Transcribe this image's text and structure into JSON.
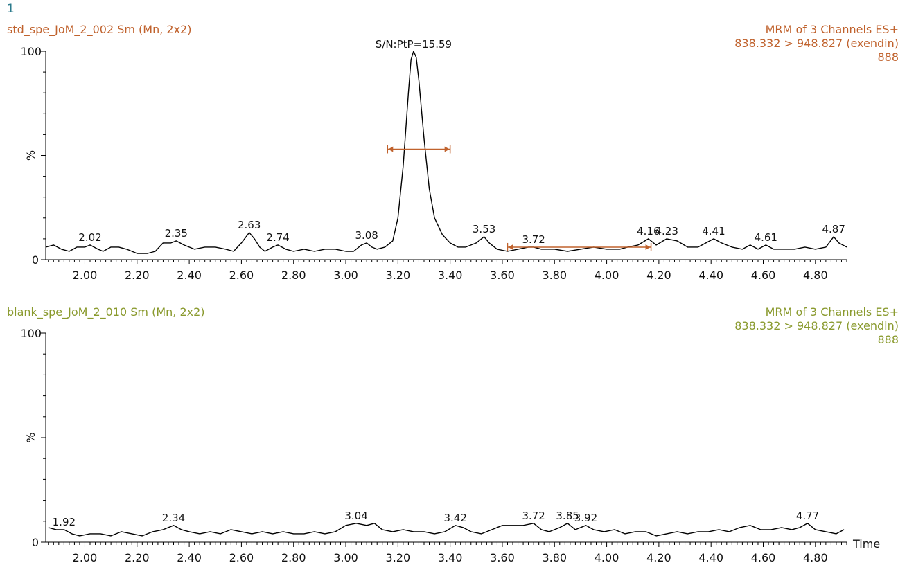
{
  "page_number": "1",
  "chart_data": [
    {
      "type": "line",
      "title": "std_spe_JoM_2_002 Sm (Mn, 2x2)",
      "info": [
        "MRM of 3 Channels ES+",
        "838.332 > 948.827 (exendin)",
        "888"
      ],
      "color": "#c0622d",
      "xlim": [
        1.85,
        4.92
      ],
      "ylim": [
        0,
        100
      ],
      "ylabel": "%",
      "xlabel": "",
      "y_ticks": [
        "100",
        "0"
      ],
      "x_ticks": [
        "2.00",
        "2.20",
        "2.40",
        "2.60",
        "2.80",
        "3.00",
        "3.20",
        "3.40",
        "3.60",
        "3.80",
        "4.00",
        "4.20",
        "4.40",
        "4.60",
        "4.80"
      ],
      "sn_label": "S/N:PtP=15.59",
      "peak_labels": [
        {
          "text": "2.02",
          "x": 2.02,
          "y": 7
        },
        {
          "text": "2.35",
          "x": 2.35,
          "y": 9
        },
        {
          "text": "2.63",
          "x": 2.63,
          "y": 13
        },
        {
          "text": "2.74",
          "x": 2.74,
          "y": 7
        },
        {
          "text": "3.08",
          "x": 3.08,
          "y": 8
        },
        {
          "text": "3.53",
          "x": 3.53,
          "y": 11
        },
        {
          "text": "3.72",
          "x": 3.72,
          "y": 6
        },
        {
          "text": "4.16",
          "x": 4.16,
          "y": 10
        },
        {
          "text": "4.23",
          "x": 4.23,
          "y": 10
        },
        {
          "text": "4.41",
          "x": 4.41,
          "y": 10
        },
        {
          "text": "4.61",
          "x": 4.61,
          "y": 7
        },
        {
          "text": "4.87",
          "x": 4.87,
          "y": 11
        }
      ],
      "noise_ranges": [
        {
          "x0": 3.16,
          "x1": 3.4,
          "y": 53
        },
        {
          "x0": 3.62,
          "x1": 4.17,
          "y": 6
        }
      ],
      "points": [
        [
          1.85,
          6
        ],
        [
          1.88,
          7
        ],
        [
          1.91,
          5
        ],
        [
          1.94,
          4
        ],
        [
          1.97,
          6
        ],
        [
          2.0,
          6
        ],
        [
          2.02,
          7
        ],
        [
          2.05,
          5
        ],
        [
          2.07,
          4
        ],
        [
          2.1,
          6
        ],
        [
          2.13,
          6
        ],
        [
          2.16,
          5
        ],
        [
          2.2,
          3
        ],
        [
          2.24,
          3
        ],
        [
          2.27,
          4
        ],
        [
          2.3,
          8
        ],
        [
          2.33,
          8
        ],
        [
          2.35,
          9
        ],
        [
          2.38,
          7
        ],
        [
          2.42,
          5
        ],
        [
          2.46,
          6
        ],
        [
          2.5,
          6
        ],
        [
          2.54,
          5
        ],
        [
          2.57,
          4
        ],
        [
          2.6,
          8
        ],
        [
          2.63,
          13
        ],
        [
          2.65,
          10
        ],
        [
          2.67,
          6
        ],
        [
          2.69,
          4
        ],
        [
          2.72,
          6
        ],
        [
          2.74,
          7
        ],
        [
          2.77,
          5
        ],
        [
          2.8,
          4
        ],
        [
          2.84,
          5
        ],
        [
          2.88,
          4
        ],
        [
          2.92,
          5
        ],
        [
          2.96,
          5
        ],
        [
          3.0,
          4
        ],
        [
          3.03,
          4
        ],
        [
          3.06,
          7
        ],
        [
          3.08,
          8
        ],
        [
          3.1,
          6
        ],
        [
          3.12,
          5
        ],
        [
          3.15,
          6
        ],
        [
          3.18,
          9
        ],
        [
          3.2,
          20
        ],
        [
          3.22,
          45
        ],
        [
          3.24,
          80
        ],
        [
          3.25,
          96
        ],
        [
          3.26,
          100
        ],
        [
          3.27,
          97
        ],
        [
          3.28,
          86
        ],
        [
          3.3,
          58
        ],
        [
          3.32,
          34
        ],
        [
          3.34,
          20
        ],
        [
          3.37,
          12
        ],
        [
          3.4,
          8
        ],
        [
          3.43,
          6
        ],
        [
          3.46,
          6
        ],
        [
          3.5,
          8
        ],
        [
          3.53,
          11
        ],
        [
          3.55,
          8
        ],
        [
          3.58,
          5
        ],
        [
          3.62,
          4
        ],
        [
          3.66,
          5
        ],
        [
          3.7,
          6
        ],
        [
          3.72,
          6
        ],
        [
          3.75,
          5
        ],
        [
          3.8,
          5
        ],
        [
          3.85,
          4
        ],
        [
          3.9,
          5
        ],
        [
          3.95,
          6
        ],
        [
          4.0,
          5
        ],
        [
          4.05,
          5
        ],
        [
          4.08,
          6
        ],
        [
          4.12,
          7
        ],
        [
          4.16,
          10
        ],
        [
          4.19,
          7
        ],
        [
          4.23,
          10
        ],
        [
          4.27,
          9
        ],
        [
          4.31,
          6
        ],
        [
          4.35,
          6
        ],
        [
          4.41,
          10
        ],
        [
          4.44,
          8
        ],
        [
          4.48,
          6
        ],
        [
          4.52,
          5
        ],
        [
          4.55,
          7
        ],
        [
          4.58,
          5
        ],
        [
          4.61,
          7
        ],
        [
          4.64,
          5
        ],
        [
          4.68,
          5
        ],
        [
          4.72,
          5
        ],
        [
          4.76,
          6
        ],
        [
          4.8,
          5
        ],
        [
          4.84,
          6
        ],
        [
          4.87,
          11
        ],
        [
          4.89,
          8
        ],
        [
          4.92,
          6
        ]
      ]
    },
    {
      "type": "line",
      "title": "blank_spe_JoM_2_010 Sm (Mn, 2x2)",
      "info": [
        "MRM of 3 Channels ES+",
        "838.332 > 948.827 (exendin)",
        "888"
      ],
      "color": "#8a9a2e",
      "xlim": [
        1.85,
        4.92
      ],
      "ylim": [
        0,
        100
      ],
      "ylabel": "%",
      "xlabel": "Time",
      "y_ticks": [
        "100",
        "0"
      ],
      "x_ticks": [
        "2.00",
        "2.20",
        "2.40",
        "2.60",
        "2.80",
        "3.00",
        "3.20",
        "3.40",
        "3.60",
        "3.80",
        "4.00",
        "4.20",
        "4.40",
        "4.60",
        "4.80"
      ],
      "peak_labels": [
        {
          "text": "1.92",
          "x": 1.92,
          "y": 6
        },
        {
          "text": "2.34",
          "x": 2.34,
          "y": 8
        },
        {
          "text": "3.04",
          "x": 3.04,
          "y": 9
        },
        {
          "text": "3.42",
          "x": 3.42,
          "y": 8
        },
        {
          "text": "3.72",
          "x": 3.72,
          "y": 9
        },
        {
          "text": "3.85",
          "x": 3.85,
          "y": 9
        },
        {
          "text": "3.92",
          "x": 3.92,
          "y": 8
        },
        {
          "text": "4.77",
          "x": 4.77,
          "y": 9
        }
      ],
      "points": [
        [
          1.86,
          7
        ],
        [
          1.89,
          6
        ],
        [
          1.92,
          6
        ],
        [
          1.95,
          4
        ],
        [
          1.98,
          3
        ],
        [
          2.02,
          4
        ],
        [
          2.06,
          4
        ],
        [
          2.1,
          3
        ],
        [
          2.14,
          5
        ],
        [
          2.18,
          4
        ],
        [
          2.22,
          3
        ],
        [
          2.26,
          5
        ],
        [
          2.3,
          6
        ],
        [
          2.34,
          8
        ],
        [
          2.37,
          6
        ],
        [
          2.4,
          5
        ],
        [
          2.44,
          4
        ],
        [
          2.48,
          5
        ],
        [
          2.52,
          4
        ],
        [
          2.56,
          6
        ],
        [
          2.6,
          5
        ],
        [
          2.64,
          4
        ],
        [
          2.68,
          5
        ],
        [
          2.72,
          4
        ],
        [
          2.76,
          5
        ],
        [
          2.8,
          4
        ],
        [
          2.84,
          4
        ],
        [
          2.88,
          5
        ],
        [
          2.92,
          4
        ],
        [
          2.96,
          5
        ],
        [
          3.0,
          8
        ],
        [
          3.04,
          9
        ],
        [
          3.08,
          8
        ],
        [
          3.11,
          9
        ],
        [
          3.14,
          6
        ],
        [
          3.18,
          5
        ],
        [
          3.22,
          6
        ],
        [
          3.26,
          5
        ],
        [
          3.3,
          5
        ],
        [
          3.34,
          4
        ],
        [
          3.38,
          5
        ],
        [
          3.42,
          8
        ],
        [
          3.45,
          7
        ],
        [
          3.48,
          5
        ],
        [
          3.52,
          4
        ],
        [
          3.56,
          6
        ],
        [
          3.6,
          8
        ],
        [
          3.64,
          8
        ],
        [
          3.68,
          8
        ],
        [
          3.72,
          9
        ],
        [
          3.75,
          6
        ],
        [
          3.78,
          5
        ],
        [
          3.82,
          7
        ],
        [
          3.85,
          9
        ],
        [
          3.88,
          6
        ],
        [
          3.92,
          8
        ],
        [
          3.95,
          6
        ],
        [
          3.99,
          5
        ],
        [
          4.03,
          6
        ],
        [
          4.07,
          4
        ],
        [
          4.11,
          5
        ],
        [
          4.15,
          5
        ],
        [
          4.19,
          3
        ],
        [
          4.23,
          4
        ],
        [
          4.27,
          5
        ],
        [
          4.31,
          4
        ],
        [
          4.35,
          5
        ],
        [
          4.39,
          5
        ],
        [
          4.43,
          6
        ],
        [
          4.47,
          5
        ],
        [
          4.51,
          7
        ],
        [
          4.55,
          8
        ],
        [
          4.59,
          6
        ],
        [
          4.63,
          6
        ],
        [
          4.67,
          7
        ],
        [
          4.71,
          6
        ],
        [
          4.74,
          7
        ],
        [
          4.77,
          9
        ],
        [
          4.8,
          6
        ],
        [
          4.84,
          5
        ],
        [
          4.88,
          4
        ],
        [
          4.91,
          6
        ]
      ]
    }
  ]
}
